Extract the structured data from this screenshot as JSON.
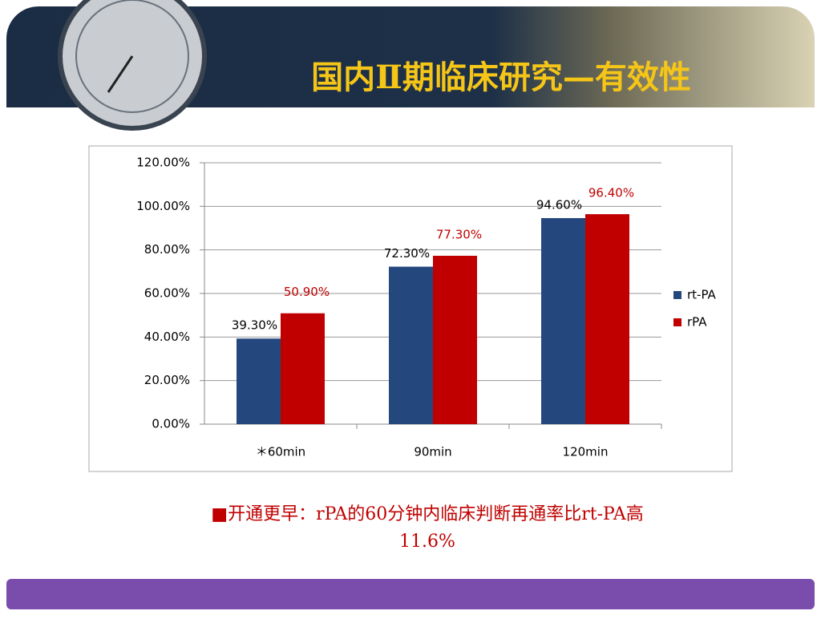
{
  "chart_data": {
    "type": "bar",
    "title": "国内Ⅱ期临床研究—有效性",
    "categories": [
      "＊60min",
      "90min",
      "120min"
    ],
    "series": [
      {
        "name": "rt-PA",
        "color": "#24487e",
        "values": [
          39.3,
          72.3,
          94.6
        ],
        "value_labels": [
          "39.30%",
          "72.30%",
          "94.60%"
        ],
        "label_color": "#000000"
      },
      {
        "name": "rPA",
        "color": "#c00000",
        "values": [
          50.9,
          77.3,
          96.4
        ],
        "value_labels": [
          "50.90%",
          "77.30%",
          "96.40%"
        ],
        "label_color": "#c00000"
      }
    ],
    "ylim": [
      0,
      120
    ],
    "yticks": [
      {
        "value": 0,
        "label": "0.00%"
      },
      {
        "value": 20,
        "label": "20.00%"
      },
      {
        "value": 40,
        "label": "40.00%"
      },
      {
        "value": 60,
        "label": "60.00%"
      },
      {
        "value": 80,
        "label": "80.00%"
      },
      {
        "value": 100,
        "label": "100.00%"
      },
      {
        "value": 120,
        "label": "120.00%"
      }
    ],
    "grid": true,
    "legend": "right",
    "annotation": [
      "■开通更早：rPA的60分钟内临床判断再通率比rt-PA高",
      "11.6%"
    ]
  }
}
